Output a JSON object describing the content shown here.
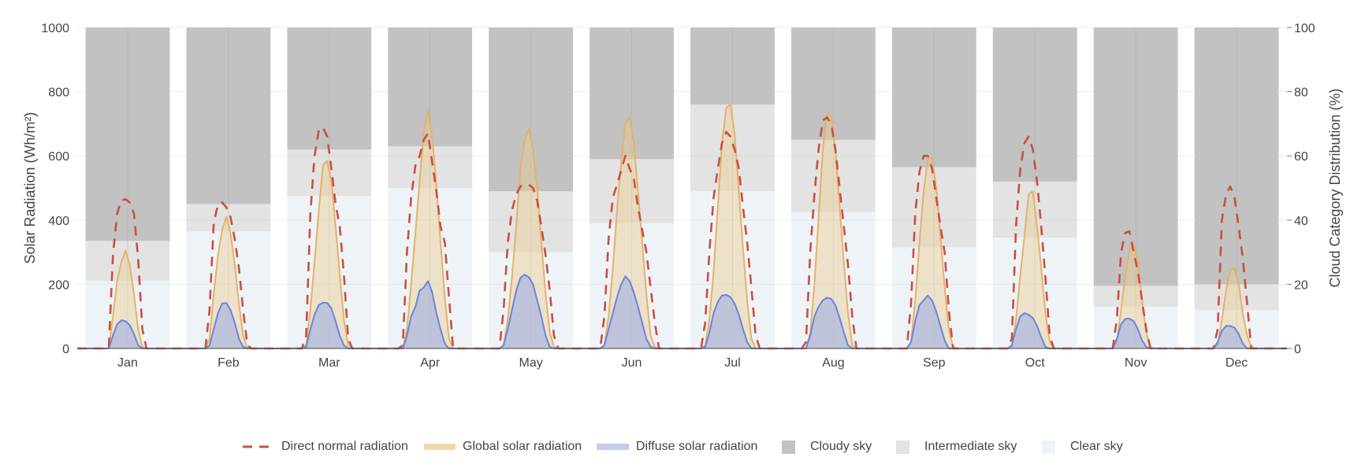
{
  "chart_data": {
    "type": "area",
    "categories": [
      "Jan",
      "Feb",
      "Mar",
      "Apr",
      "May",
      "Jun",
      "Jul",
      "Aug",
      "Sep",
      "Oct",
      "Nov",
      "Dec"
    ],
    "y_left": {
      "label": "Solar Radiation (Wh/m²)",
      "range": [
        0,
        1000
      ],
      "ticks": [
        0,
        200,
        400,
        600,
        800,
        1000
      ]
    },
    "y_right": {
      "label": "Cloud Category Distribution (%)",
      "range": [
        0,
        100
      ],
      "ticks": [
        0,
        20,
        40,
        60,
        80,
        100
      ]
    },
    "hours_per_category": 24,
    "series": [
      {
        "name": "Direct normal radiation",
        "style": "dashed-line",
        "color": "#c9503f",
        "hourly": [
          [
            0,
            0,
            0,
            0,
            0,
            0,
            0,
            0,
            290,
            420,
            462,
            465,
            455,
            420,
            280,
            60,
            0,
            0,
            0,
            0,
            0,
            0,
            0,
            0
          ],
          [
            0,
            0,
            0,
            0,
            0,
            0,
            0,
            120,
            390,
            450,
            455,
            440,
            410,
            340,
            250,
            120,
            10,
            0,
            0,
            0,
            0,
            0,
            0,
            0
          ],
          [
            0,
            0,
            0,
            0,
            0,
            0,
            40,
            420,
            600,
            680,
            690,
            660,
            560,
            450,
            380,
            230,
            30,
            0,
            0,
            0,
            0,
            0,
            0,
            0
          ],
          [
            0,
            0,
            0,
            0,
            0,
            10,
            300,
            470,
            570,
            600,
            650,
            670,
            580,
            490,
            380,
            330,
            160,
            0,
            0,
            0,
            0,
            0,
            0,
            0
          ],
          [
            0,
            0,
            0,
            0,
            0,
            120,
            330,
            430,
            480,
            505,
            510,
            510,
            500,
            460,
            380,
            290,
            180,
            40,
            0,
            0,
            0,
            0,
            0,
            0
          ],
          [
            0,
            0,
            0,
            0,
            0,
            100,
            340,
            470,
            510,
            555,
            600,
            560,
            530,
            440,
            370,
            300,
            190,
            80,
            0,
            0,
            0,
            0,
            0,
            0
          ],
          [
            0,
            0,
            0,
            0,
            0,
            80,
            300,
            470,
            560,
            640,
            675,
            660,
            620,
            560,
            440,
            330,
            190,
            40,
            0,
            0,
            0,
            0,
            0,
            0
          ],
          [
            0,
            0,
            0,
            0,
            0,
            20,
            300,
            480,
            620,
            710,
            720,
            700,
            620,
            500,
            380,
            260,
            100,
            0,
            0,
            0,
            0,
            0,
            0,
            0
          ],
          [
            0,
            0,
            0,
            0,
            0,
            0,
            140,
            420,
            550,
            600,
            600,
            560,
            470,
            380,
            300,
            120,
            0,
            0,
            0,
            0,
            0,
            0,
            0,
            0
          ],
          [
            0,
            0,
            0,
            0,
            0,
            0,
            30,
            380,
            560,
            640,
            660,
            620,
            520,
            380,
            220,
            40,
            0,
            0,
            0,
            0,
            0,
            0,
            0,
            0
          ],
          [
            0,
            0,
            0,
            0,
            0,
            0,
            0,
            90,
            300,
            360,
            365,
            300,
            240,
            150,
            60,
            0,
            0,
            0,
            0,
            0,
            0,
            0,
            0,
            0
          ],
          [
            0,
            0,
            0,
            0,
            0,
            0,
            0,
            60,
            400,
            480,
            505,
            470,
            380,
            280,
            140,
            0,
            0,
            0,
            0,
            0,
            0,
            0,
            0,
            0
          ]
        ]
      },
      {
        "name": "Global solar radiation",
        "style": "area",
        "color": "#e2b26a",
        "fill": "rgba(236,205,145,0.45)",
        "hourly": [
          [
            0,
            0,
            0,
            0,
            0,
            0,
            0,
            0,
            100,
            210,
            270,
            305,
            260,
            170,
            60,
            5,
            0,
            0,
            0,
            0,
            0,
            0,
            0,
            0
          ],
          [
            0,
            0,
            0,
            0,
            0,
            0,
            0,
            30,
            170,
            290,
            370,
            410,
            360,
            260,
            140,
            40,
            0,
            0,
            0,
            0,
            0,
            0,
            0,
            0
          ],
          [
            0,
            0,
            0,
            0,
            0,
            0,
            10,
            120,
            270,
            430,
            570,
            585,
            520,
            380,
            230,
            90,
            10,
            0,
            0,
            0,
            0,
            0,
            0,
            0
          ],
          [
            0,
            0,
            0,
            0,
            0,
            0,
            60,
            200,
            360,
            520,
            670,
            740,
            660,
            510,
            330,
            160,
            30,
            0,
            0,
            0,
            0,
            0,
            0,
            0
          ],
          [
            0,
            0,
            0,
            0,
            0,
            10,
            90,
            220,
            380,
            560,
            650,
            685,
            620,
            500,
            330,
            170,
            50,
            5,
            0,
            0,
            0,
            0,
            0,
            0
          ],
          [
            0,
            0,
            0,
            0,
            0,
            10,
            100,
            250,
            430,
            580,
            700,
            720,
            640,
            490,
            330,
            170,
            40,
            5,
            0,
            0,
            0,
            0,
            0,
            0
          ],
          [
            0,
            0,
            0,
            0,
            0,
            10,
            90,
            240,
            440,
            640,
            750,
            760,
            670,
            490,
            310,
            150,
            30,
            0,
            0,
            0,
            0,
            0,
            0,
            0
          ],
          [
            0,
            0,
            0,
            0,
            0,
            0,
            50,
            200,
            410,
            620,
            735,
            720,
            620,
            440,
            270,
            110,
            10,
            0,
            0,
            0,
            0,
            0,
            0,
            0
          ],
          [
            0,
            0,
            0,
            0,
            0,
            0,
            20,
            150,
            330,
            490,
            590,
            595,
            500,
            350,
            190,
            60,
            5,
            0,
            0,
            0,
            0,
            0,
            0,
            0
          ],
          [
            0,
            0,
            0,
            0,
            0,
            0,
            5,
            90,
            230,
            350,
            480,
            490,
            380,
            250,
            110,
            20,
            0,
            0,
            0,
            0,
            0,
            0,
            0,
            0
          ],
          [
            0,
            0,
            0,
            0,
            0,
            0,
            0,
            20,
            120,
            230,
            300,
            325,
            270,
            150,
            50,
            5,
            0,
            0,
            0,
            0,
            0,
            0,
            0,
            0
          ],
          [
            0,
            0,
            0,
            0,
            0,
            0,
            0,
            10,
            90,
            180,
            245,
            250,
            200,
            110,
            40,
            5,
            0,
            0,
            0,
            0,
            0,
            0,
            0,
            0
          ]
        ]
      },
      {
        "name": "Diffuse solar radiation",
        "style": "area",
        "color": "#6a85d8",
        "fill": "rgba(160,175,230,0.6)",
        "hourly": [
          [
            0,
            0,
            0,
            0,
            0,
            0,
            0,
            0,
            40,
            75,
            88,
            85,
            72,
            45,
            10,
            0,
            0,
            0,
            0,
            0,
            0,
            0,
            0,
            0
          ],
          [
            0,
            0,
            0,
            0,
            0,
            0,
            0,
            10,
            60,
            110,
            140,
            142,
            120,
            80,
            30,
            5,
            0,
            0,
            0,
            0,
            0,
            0,
            0,
            0
          ],
          [
            0,
            0,
            0,
            0,
            0,
            0,
            5,
            60,
            105,
            135,
            143,
            142,
            125,
            85,
            40,
            10,
            0,
            0,
            0,
            0,
            0,
            0,
            0,
            0
          ],
          [
            0,
            0,
            0,
            0,
            0,
            0,
            40,
            100,
            130,
            180,
            190,
            210,
            175,
            110,
            60,
            15,
            0,
            0,
            0,
            0,
            0,
            0,
            0,
            0
          ],
          [
            0,
            0,
            0,
            0,
            0,
            10,
            60,
            120,
            180,
            220,
            230,
            222,
            200,
            150,
            100,
            40,
            5,
            0,
            0,
            0,
            0,
            0,
            0,
            0
          ],
          [
            0,
            0,
            0,
            0,
            0,
            10,
            60,
            110,
            160,
            200,
            225,
            210,
            175,
            130,
            80,
            30,
            5,
            0,
            0,
            0,
            0,
            0,
            0,
            0
          ],
          [
            0,
            0,
            0,
            0,
            0,
            5,
            50,
            110,
            145,
            165,
            167,
            160,
            140,
            105,
            60,
            20,
            0,
            0,
            0,
            0,
            0,
            0,
            0,
            0
          ],
          [
            0,
            0,
            0,
            0,
            0,
            0,
            40,
            100,
            130,
            150,
            158,
            155,
            135,
            95,
            50,
            10,
            0,
            0,
            0,
            0,
            0,
            0,
            0,
            0
          ],
          [
            0,
            0,
            0,
            0,
            0,
            0,
            20,
            85,
            135,
            150,
            165,
            150,
            115,
            70,
            25,
            0,
            0,
            0,
            0,
            0,
            0,
            0,
            0,
            0
          ],
          [
            0,
            0,
            0,
            0,
            0,
            0,
            10,
            60,
            100,
            110,
            105,
            95,
            70,
            35,
            5,
            0,
            0,
            0,
            0,
            0,
            0,
            0,
            0,
            0
          ],
          [
            0,
            0,
            0,
            0,
            0,
            0,
            0,
            30,
            75,
            92,
            93,
            85,
            60,
            25,
            5,
            0,
            0,
            0,
            0,
            0,
            0,
            0,
            0,
            0
          ],
          [
            0,
            0,
            0,
            0,
            0,
            0,
            0,
            20,
            55,
            70,
            70,
            65,
            45,
            15,
            0,
            0,
            0,
            0,
            0,
            0,
            0,
            0,
            0,
            0
          ]
        ]
      }
    ],
    "cloud_categories": [
      {
        "name": "Cloudy sky",
        "color": "#c2c2c2",
        "values": [
          66.5,
          55,
          38,
          37,
          51,
          41,
          24,
          35,
          43.5,
          48,
          80.5,
          80
        ]
      },
      {
        "name": "Intermediate sky",
        "color": "#e3e3e3",
        "values": [
          12.5,
          8.5,
          14.5,
          13,
          19,
          20,
          27,
          22.5,
          25,
          17.5,
          6.5,
          8
        ]
      },
      {
        "name": "Clear sky",
        "color": "#eef3f8",
        "values": [
          21,
          36.5,
          47.5,
          50,
          30,
          39,
          49,
          42.5,
          31.5,
          34.5,
          13,
          12
        ]
      }
    ],
    "grid": true,
    "legend_position": "bottom-center"
  },
  "legend": {
    "items": [
      {
        "label": "Direct normal radiation",
        "kind": "dash",
        "color": "#c9503f"
      },
      {
        "label": "Global solar radiation",
        "kind": "band",
        "color": "#efd9a8"
      },
      {
        "label": "Diffuse solar radiation",
        "kind": "band",
        "color": "#c3cbef"
      },
      {
        "label": "Cloudy sky",
        "kind": "square",
        "color": "#c2c2c2"
      },
      {
        "label": "Intermediate sky",
        "kind": "square",
        "color": "#e3e3e3"
      },
      {
        "label": "Clear sky",
        "kind": "square",
        "color": "#eef3f8"
      }
    ]
  }
}
